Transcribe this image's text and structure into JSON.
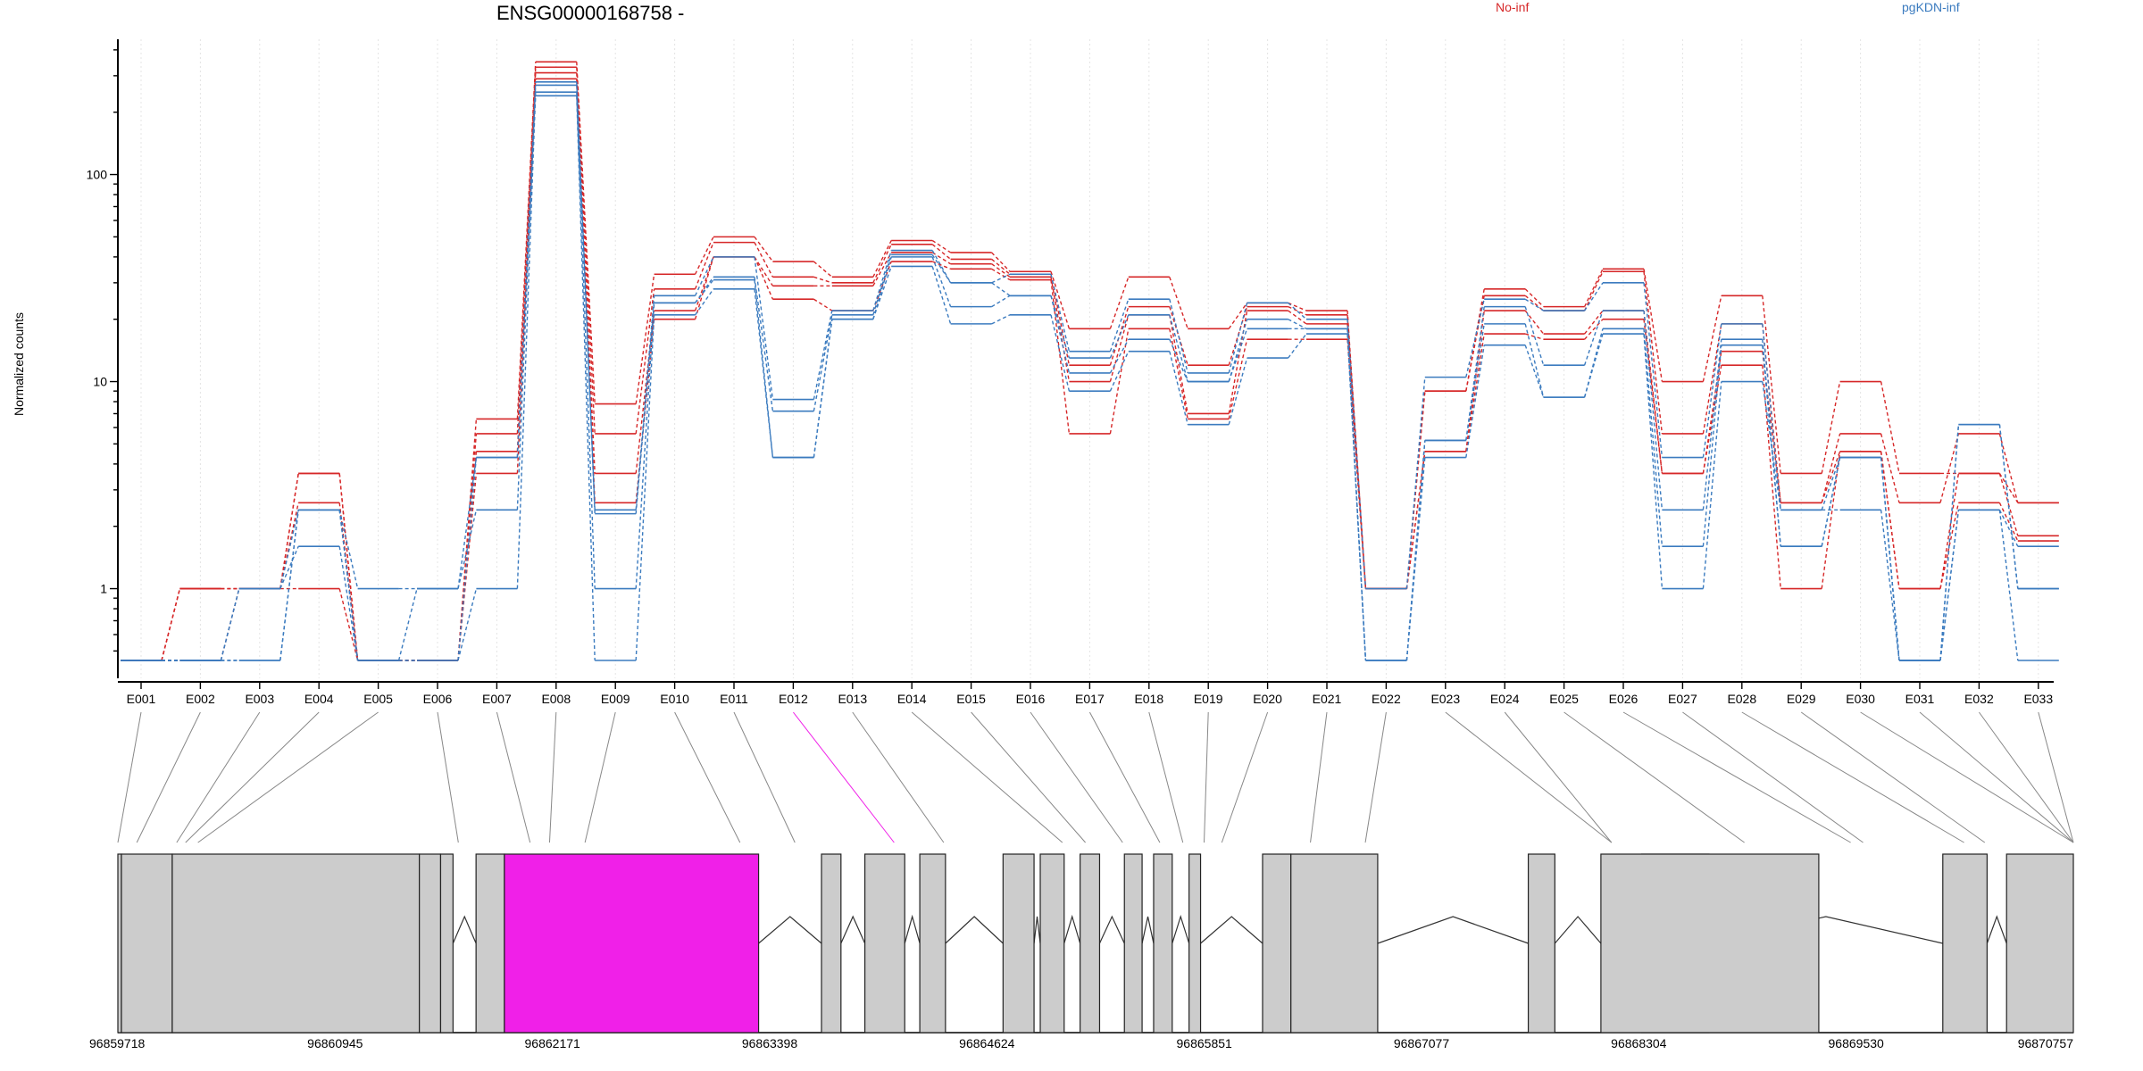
{
  "chart_data": {
    "type": "line",
    "title": "ENSG00000168758 -",
    "ylabel": "Normalized counts",
    "xlabel": "",
    "yscale": "log",
    "ylim": [
      0.45,
      450
    ],
    "grid": false,
    "legend": "top",
    "y_ticks": [
      {
        "value": 1,
        "label": "1"
      },
      {
        "value": 10,
        "label": "10"
      },
      {
        "value": 100,
        "label": "100"
      }
    ],
    "categories": [
      "E001",
      "E002",
      "E003",
      "E004",
      "E005",
      "E006",
      "E007",
      "E008",
      "E009",
      "E010",
      "E011",
      "E012",
      "E013",
      "E014",
      "E015",
      "E016",
      "E017",
      "E018",
      "E019",
      "E020",
      "E021",
      "E022",
      "E023",
      "E024",
      "E025",
      "E026",
      "E027",
      "E028",
      "E029",
      "E030",
      "E031",
      "E032",
      "E033"
    ],
    "groups": [
      {
        "name": "No-inf",
        "color": "#d62728",
        "series": [
          {
            "values": [
              0.45,
              1,
              1,
              3.6,
              0.45,
              0.45,
              6.6,
              350,
              7.8,
              33,
              50,
              38,
              32,
              48,
              42,
              34,
              18,
              32,
              18,
              24,
              22,
              1,
              9,
              28,
              23,
              35,
              10,
              26,
              3.6,
              10,
              3.6,
              3.6,
              2.6
            ]
          },
          {
            "values": [
              0.45,
              1,
              1,
              2.6,
              0.45,
              0.45,
              5.6,
              330,
              5.6,
              28,
              47,
              32,
              30,
              46,
              39,
              33,
              12,
              23,
              12,
              23,
              21,
              1,
              9,
              26,
              22,
              34,
              5.6,
              19,
              2.6,
              5.6,
              2.6,
              5.6,
              2.6
            ]
          },
          {
            "values": [
              0.45,
              1,
              1,
              1,
              0.45,
              0.45,
              4.6,
              310,
              3.6,
              22,
              40,
              29,
              29,
              42,
              37,
              32,
              10,
              21,
              7,
              22,
              19,
              1,
              4.6,
              22,
              17,
              22,
              3.6,
              14,
              2.6,
              4.6,
              1,
              3.6,
              1.8
            ]
          },
          {
            "values": [
              0.45,
              0.45,
              1,
              3.6,
              0.45,
              0.45,
              3.6,
              290,
              2.6,
              20,
              40,
              25,
              22,
              38,
              35,
              31,
              5.6,
              18,
              6.6,
              16,
              16,
              1,
              4.6,
              17,
              16,
              20,
              3.6,
              12,
              1,
              4.6,
              1,
              2.6,
              1.7
            ]
          }
        ]
      },
      {
        "name": "pgKDN-inf",
        "color": "#3b7bbf",
        "series": [
          {
            "values": [
              0.45,
              0.45,
              1,
              2.4,
              1,
              1,
              4.3,
              280,
              2.4,
              26,
              40,
              8.2,
              22,
              43,
              30,
              33,
              14,
              25,
              11,
              24,
              20,
              1,
              10.5,
              25,
              22,
              30,
              4.3,
              19,
              2.4,
              4.3,
              0.45,
              6.2,
              1
            ]
          },
          {
            "values": [
              0.45,
              0.45,
              1,
              1.6,
              0.45,
              1,
              2.4,
              270,
              2.3,
              24,
              32,
              7.2,
              21,
              41,
              30,
              26,
              13,
              21,
              10,
              20,
              18,
              0.45,
              5.2,
              23,
              12,
              22,
              2.4,
              16,
              1.6,
              4.3,
              0.45,
              6.2,
              1
            ]
          },
          {
            "values": [
              0.45,
              0.45,
              0.45,
              2.4,
              0.45,
              0.45,
              1,
              250,
              1,
              24,
              31,
              4.3,
              20,
              40,
              23,
              26,
              11,
              16,
              10,
              18,
              18,
              0.45,
              5.2,
              19,
              8.4,
              18,
              1.6,
              15,
              1.6,
              4.3,
              0.45,
              2.4,
              1.6
            ]
          },
          {
            "values": [
              0.45,
              0.45,
              0.45,
              2.4,
              0.45,
              0.45,
              4.3,
              240,
              0.45,
              21,
              28,
              4.3,
              20,
              36,
              19,
              21,
              9,
              14,
              6.2,
              13,
              17,
              0.45,
              4.3,
              15,
              8.4,
              17,
              1,
              10,
              2.4,
              2.4,
              0.45,
              2.4,
              0.45
            ]
          }
        ]
      }
    ],
    "highlighted_exon": "E012",
    "highlight_color": "#f020e8",
    "gene_model": {
      "coord_labels": [
        "96859718",
        "96860945",
        "96862171",
        "96863398",
        "96864624",
        "96865851",
        "96867077",
        "96868304",
        "96869530",
        "96870757"
      ],
      "coord_range": [
        96859718,
        96870757
      ],
      "exon_box_color": "#cccccc",
      "blocks": [
        [
          96859718,
          96859738
        ],
        [
          96859738,
          96860025
        ],
        [
          96860025,
          96861420
        ],
        [
          96861420,
          96861540
        ],
        [
          96861540,
          96861610
        ],
        [
          96861740,
          96861900
        ],
        [
          96861900,
          96863335
        ],
        [
          96863690,
          96863800
        ],
        [
          96863935,
          96864160
        ],
        [
          96864245,
          96864390
        ],
        [
          96864715,
          96864890
        ],
        [
          96864925,
          96865060
        ],
        [
          96865150,
          96865260
        ],
        [
          96865400,
          96865500
        ],
        [
          96865565,
          96865670
        ],
        [
          96865765,
          96865830
        ],
        [
          96866180,
          96866340
        ],
        [
          96866340,
          96866830
        ],
        [
          96867680,
          96867830
        ],
        [
          96868320,
          96868700
        ],
        [
          96868090,
          96869320
        ],
        [
          96870020,
          96870270
        ],
        [
          96870380,
          96870757
        ]
      ],
      "exon_positions": [
        96859730,
        96859900,
        96860050,
        96860130,
        96860220,
        96861400,
        96861490,
        96861620,
        96861870,
        96863380,
        96864000,
        96864310,
        96864650,
        96865050,
        96865150,
        96865270,
        96865420,
        96865570,
        96865620,
        96865720,
        96866180,
        96866470,
        96867730,
        96867810,
        96868480,
        96869110,
        96869890,
        96870757,
        96870757,
        96870757,
        96870757,
        96870757,
        96870757
      ],
      "connector_tops": [
        96859718,
        96859825,
        96860050,
        96860100,
        96860170,
        96861640,
        96862045,
        96862155,
        96862355,
        96863230,
        96863540,
        96864100,
        96864380,
        96865050,
        96865180,
        96865390,
        96865600,
        96865730,
        96865850,
        96865950,
        96866450,
        96866760,
        96868150,
        96868150,
        96868900,
        96869500,
        96869570,
        96870140,
        96870257,
        96870757,
        96870757,
        96870757,
        96870757
      ]
    }
  }
}
